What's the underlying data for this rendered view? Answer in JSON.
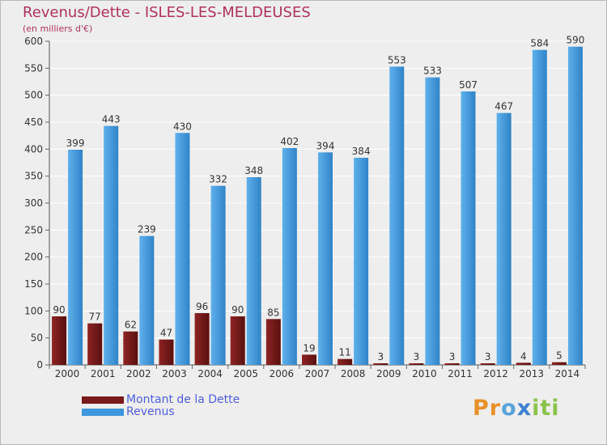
{
  "colors": {
    "dette": "#7a1a1a",
    "revenus": "#3d97dc",
    "title": "#b0325a",
    "legend_text": "#4f5fe0",
    "background": "#eeeeee",
    "grid": "#ffffff"
  },
  "chart_data": {
    "type": "bar",
    "title": "Revenus/Dette - ISLES-LES-MELDEUSES",
    "subtitle": "(en milliers d'€)",
    "categories": [
      "2000",
      "2001",
      "2002",
      "2003",
      "2004",
      "2005",
      "2006",
      "2007",
      "2008",
      "2009",
      "2010",
      "2011",
      "2012",
      "2013",
      "2014"
    ],
    "series": [
      {
        "name": "Montant de la Dette",
        "color": "#7a1a1a",
        "values": [
          90,
          77,
          62,
          47,
          96,
          90,
          85,
          19,
          11,
          3,
          3,
          3,
          3,
          4,
          5
        ]
      },
      {
        "name": "Revenus",
        "color": "#3d97dc",
        "values": [
          399,
          443,
          239,
          430,
          332,
          348,
          402,
          394,
          384,
          553,
          533,
          507,
          467,
          584,
          590
        ]
      }
    ],
    "ylim": [
      0,
      600
    ],
    "yticks": [
      0,
      50,
      100,
      150,
      200,
      250,
      300,
      350,
      400,
      450,
      500,
      550,
      600
    ],
    "grid": true,
    "legend_position": "bottom-left"
  },
  "logo": {
    "letters": [
      "P",
      "r",
      "o",
      "x",
      "i",
      "t",
      "i"
    ],
    "colors": [
      "#e8902a",
      "#e8902a",
      "#57a3d8",
      "#3d7fd0",
      "#8bc34a",
      "#8bc34a",
      "#8bc34a"
    ]
  }
}
